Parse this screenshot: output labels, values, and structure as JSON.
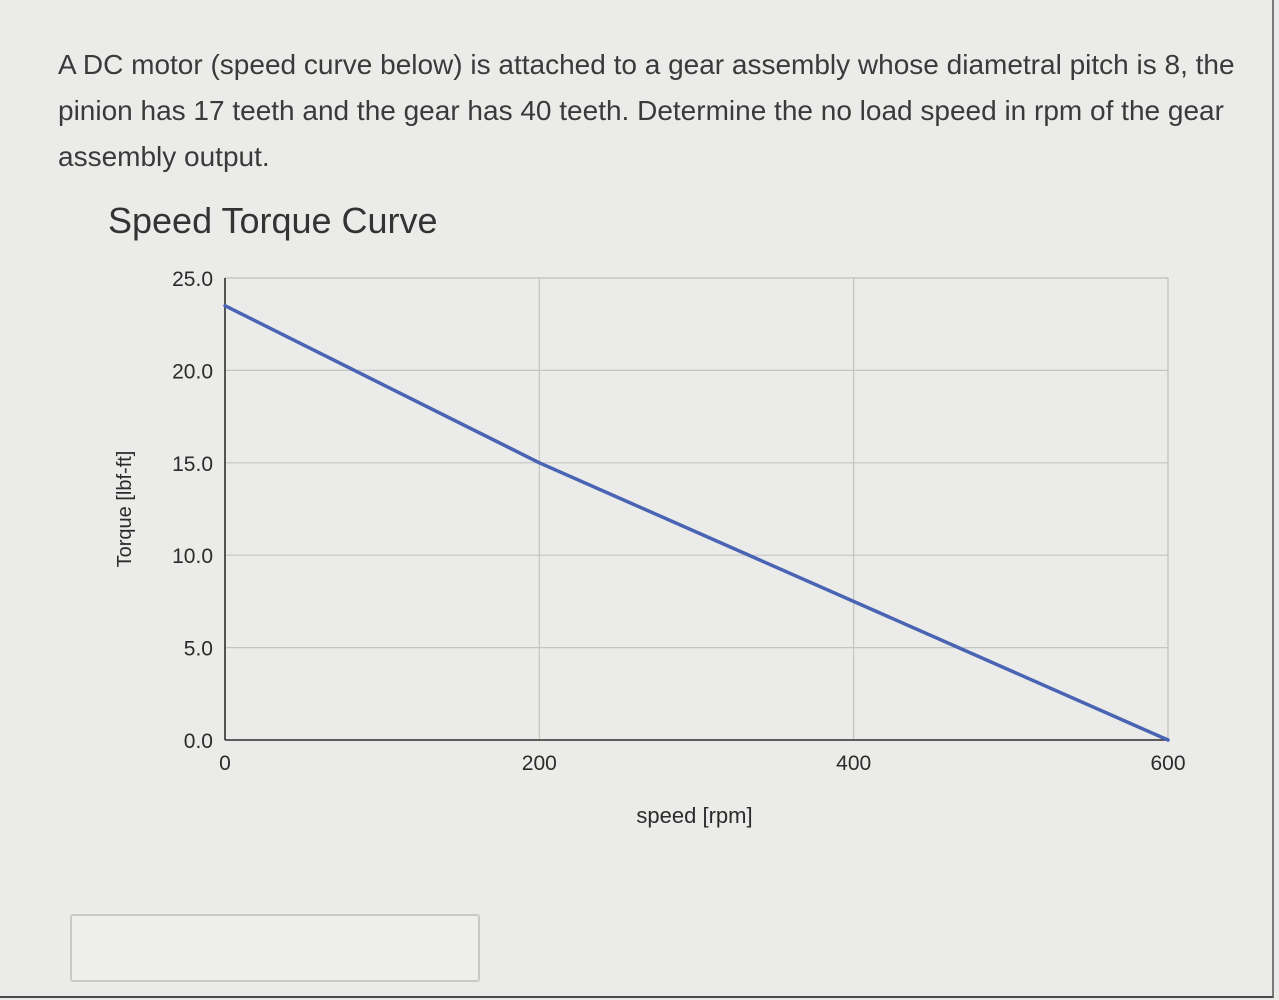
{
  "question": {
    "text": "A DC motor (speed curve below) is attached to a gear assembly whose diametral pitch is 8, the pinion has 17 teeth and the gear has 40 teeth. Determine the no load speed in rpm of the gear assembly output."
  },
  "colors": {
    "line": "#4a64b4",
    "grid": "#c4c4c2",
    "axis": "#333333",
    "plot_bg": "#ebebe9"
  },
  "chart_data": {
    "type": "line",
    "title": "Speed Torque Curve",
    "xlabel": "speed [rpm]",
    "ylabel": "Torque [lbf-ft]",
    "xlim": [
      0,
      600
    ],
    "ylim": [
      0,
      25
    ],
    "x_ticks": [
      "0",
      "200",
      "400",
      "600"
    ],
    "y_ticks": [
      "0.0",
      "5.0",
      "10.0",
      "15.0",
      "20.0",
      "25.0"
    ],
    "grid": true,
    "series": [
      {
        "x": [
          0,
          200,
          600
        ],
        "y": [
          23.5,
          15.0,
          0.0
        ]
      }
    ]
  }
}
